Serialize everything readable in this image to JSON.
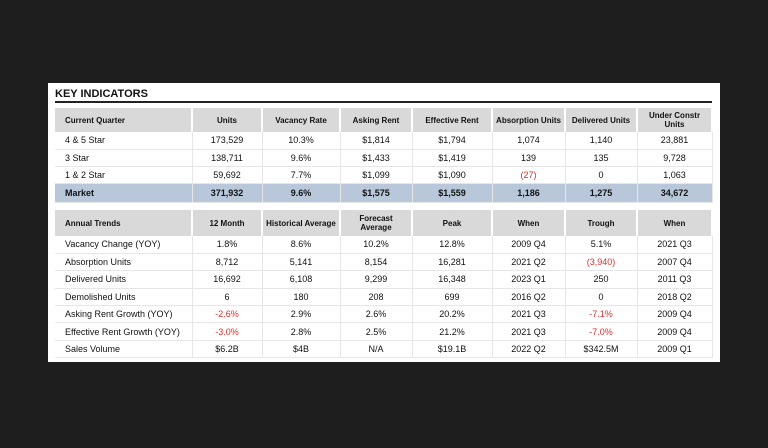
{
  "title": "KEY INDICATORS",
  "negative_color": "#d9302c",
  "current": {
    "header": [
      "Current Quarter",
      "Units",
      "Vacancy Rate",
      "Asking Rent",
      "Effective Rent",
      "Absorption Units",
      "Delivered Units",
      "Under Constr Units"
    ],
    "rows": [
      [
        "4 & 5 Star",
        "173,529",
        "10.3%",
        "$1,814",
        "$1,794",
        "1,074",
        "1,140",
        "23,881"
      ],
      [
        "3 Star",
        "138,711",
        "9.6%",
        "$1,433",
        "$1,419",
        "139",
        "135",
        "9,728"
      ],
      [
        "1 & 2 Star",
        "59,692",
        "7.7%",
        "$1,099",
        "$1,090",
        "(27)",
        "0",
        "1,063"
      ],
      [
        "Market",
        "371,932",
        "9.6%",
        "$1,575",
        "$1,559",
        "1,186",
        "1,275",
        "34,672"
      ]
    ]
  },
  "annual": {
    "header": [
      "Annual Trends",
      "12 Month",
      "Historical Average",
      "Forecast Average",
      "Peak",
      "When",
      "Trough",
      "When"
    ],
    "rows": [
      [
        "Vacancy Change (YOY)",
        "1.8%",
        "8.6%",
        "10.2%",
        "12.8%",
        "2009 Q4",
        "5.1%",
        "2021 Q3"
      ],
      [
        "Absorption Units",
        "8,712",
        "5,141",
        "8,154",
        "16,281",
        "2021 Q2",
        "(3,940)",
        "2007 Q4"
      ],
      [
        "Delivered Units",
        "16,692",
        "6,108",
        "9,299",
        "16,348",
        "2023 Q1",
        "250",
        "2011 Q3"
      ],
      [
        "Demolished Units",
        "6",
        "180",
        "208",
        "699",
        "2016 Q2",
        "0",
        "2018 Q2"
      ],
      [
        "Asking Rent Growth (YOY)",
        "-2.6%",
        "2.9%",
        "2.6%",
        "20.2%",
        "2021 Q3",
        "-7.1%",
        "2009 Q4"
      ],
      [
        "Effective Rent Growth (YOY)",
        "-3.0%",
        "2.8%",
        "2.5%",
        "21.2%",
        "2021 Q3",
        "-7.0%",
        "2009 Q4"
      ],
      [
        "Sales Volume",
        "$6.2B",
        "$4B",
        "N/A",
        "$19.1B",
        "2022 Q2",
        "$342.5M",
        "2009 Q1"
      ]
    ]
  }
}
